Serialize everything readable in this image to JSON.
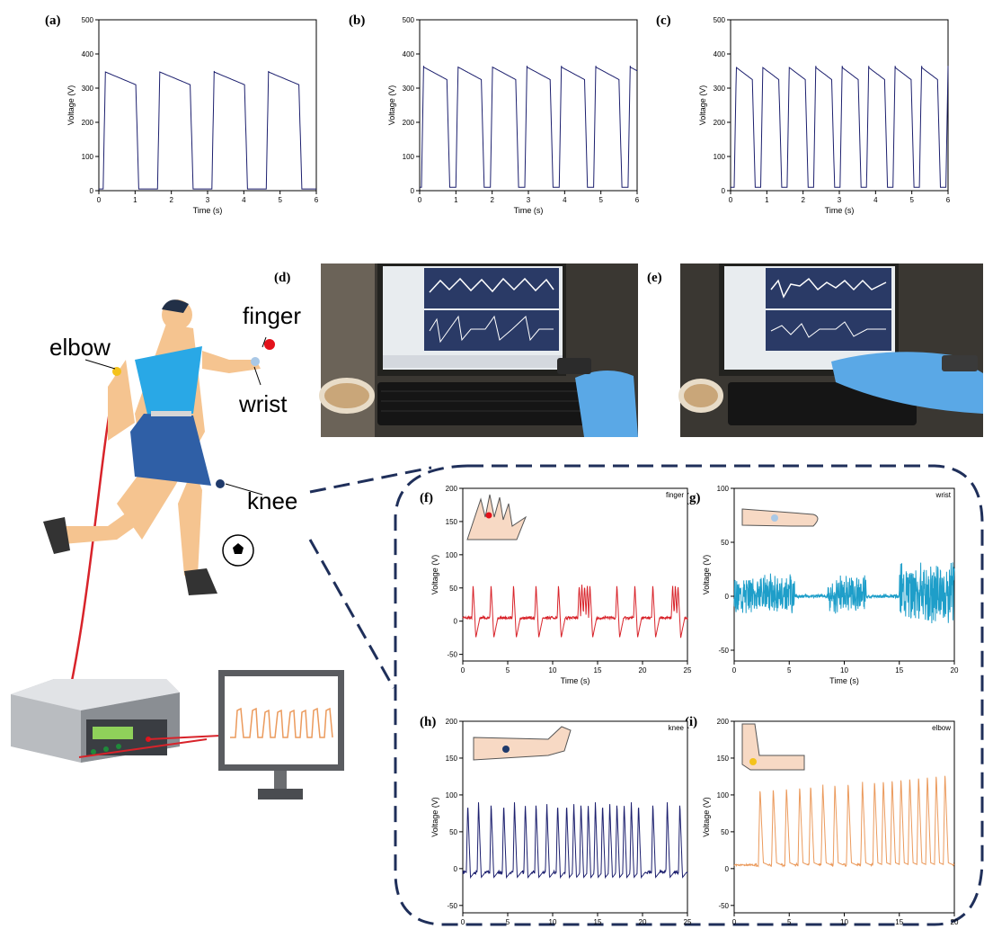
{
  "panel_letters": [
    "(a)",
    "(b)",
    "(c)",
    "(d)",
    "(e)",
    "(f)",
    "(g)",
    "(h)",
    "(i)"
  ],
  "body_labels": {
    "finger": "finger",
    "elbow": "elbow",
    "wrist": "wrist",
    "knee": "knee"
  },
  "colors": {
    "navy": "#1c1f6e",
    "red": "#d8232a",
    "cyan": "#1e9ec9",
    "orange": "#eb9a5c",
    "marker_finger": "#e3121b",
    "marker_elbow": "#f4c21b",
    "marker_wrist": "#a9c8e6",
    "marker_knee": "#1f3a6b"
  },
  "photo_icons": [
    "lab-computer-photo",
    "glove-hand-photo",
    "keyboard-photo"
  ],
  "chart_data": [
    {
      "id": "a",
      "type": "line",
      "xlabel": "Time (s)",
      "ylabel": "Voltage (V)",
      "xlim": [
        0,
        6
      ],
      "ylim": [
        0,
        500
      ],
      "xticks": [
        0,
        1,
        2,
        3,
        4,
        5,
        6
      ],
      "yticks": [
        0,
        100,
        200,
        300,
        400,
        500
      ],
      "series": [
        {
          "color": "#1c1f6e",
          "pulse": {
            "period": 1.5,
            "start": 0.12,
            "high": 350,
            "low": 5,
            "width": 0.9
          }
        }
      ]
    },
    {
      "id": "b",
      "type": "line",
      "xlabel": "Time (s)",
      "ylabel": "Voltage (V)",
      "xlim": [
        0,
        6
      ],
      "ylim": [
        0,
        500
      ],
      "xticks": [
        0,
        1,
        2,
        3,
        4,
        5,
        6
      ],
      "yticks": [
        0,
        100,
        200,
        300,
        400,
        500
      ],
      "series": [
        {
          "color": "#1c1f6e",
          "pulse": {
            "period": 0.95,
            "start": 0.05,
            "high": 365,
            "low": 10,
            "width": 0.7
          }
        }
      ]
    },
    {
      "id": "c",
      "type": "line",
      "xlabel": "Time (s)",
      "ylabel": "Voltage (V)",
      "xlim": [
        0,
        6
      ],
      "ylim": [
        0,
        500
      ],
      "xticks": [
        0,
        1,
        2,
        3,
        4,
        5,
        6
      ],
      "yticks": [
        0,
        100,
        200,
        300,
        400,
        500
      ],
      "series": [
        {
          "color": "#1c1f6e",
          "pulse": {
            "period": 0.73,
            "start": 0.1,
            "high": 365,
            "low": 10,
            "width": 0.5
          }
        }
      ]
    },
    {
      "id": "f",
      "type": "line",
      "legend": "finger",
      "xlabel": "Time (s)",
      "ylabel": "Voltage (V)",
      "xlim": [
        0,
        25
      ],
      "ylim": [
        -60,
        200
      ],
      "xticks": [
        0,
        5,
        10,
        15,
        20,
        25
      ],
      "yticks": [
        -50,
        0,
        50,
        100,
        150,
        200
      ],
      "series": [
        {
          "color": "#d8232a",
          "spikes": {
            "times": [
              1,
              3,
              5.5,
              8,
              10.5,
              12.8,
              13.1,
              13.4,
              13.7,
              14,
              17,
              19,
              21,
              23.2,
              23.5,
              23.8
            ],
            "peak": 55,
            "trough": -25,
            "base": 5
          }
        }
      ]
    },
    {
      "id": "g",
      "type": "line",
      "legend": "wrist",
      "xlabel": "Time (s)",
      "ylabel": "Voltage (V)",
      "xlim": [
        0,
        20
      ],
      "ylim": [
        -60,
        100
      ],
      "xticks": [
        0,
        5,
        10,
        15,
        20
      ],
      "yticks": [
        -50,
        0,
        50,
        100
      ],
      "series": [
        {
          "color": "#1e9ec9",
          "bursts": [
            [
              0,
              5.5,
              20
            ],
            [
              8.5,
              12,
              20
            ],
            [
              15,
              20,
              32
            ]
          ],
          "noise": 3
        }
      ]
    },
    {
      "id": "h",
      "type": "line",
      "legend": "knee",
      "xlabel": "Time (s)",
      "ylabel": "Voltage (V)",
      "xlim": [
        0,
        25
      ],
      "ylim": [
        -60,
        200
      ],
      "xticks": [
        0,
        5,
        10,
        15,
        20,
        25
      ],
      "yticks": [
        -50,
        0,
        50,
        100,
        150,
        200
      ],
      "series": [
        {
          "color": "#1c1f6e",
          "spikes": {
            "times": [
              0.4,
              1.6,
              3,
              4.4,
              5.6,
              6.8,
              8,
              9.2,
              10.4,
              11.4,
              12.2,
              13,
              13.8,
              14.6,
              15.4,
              16.2,
              17,
              17.8,
              18.6,
              19.4,
              21,
              22.6,
              24
            ],
            "peak": 90,
            "trough": -12,
            "base": -5
          }
        }
      ]
    },
    {
      "id": "i",
      "type": "line",
      "legend": "elbow",
      "xlabel": "Time (s)",
      "ylabel": "Voltage (V)",
      "xlim": [
        0,
        20
      ],
      "ylim": [
        -60,
        200
      ],
      "xticks": [
        0,
        5,
        10,
        15,
        20
      ],
      "yticks": [
        -50,
        0,
        50,
        100,
        150,
        200
      ],
      "series": [
        {
          "color": "#eb9a5c",
          "spikes": {
            "times": [
              2.2,
              3.4,
              4.6,
              5.8,
              6.8,
              7.9,
              9,
              10.2,
              11.5,
              12.6,
              13.4,
              14.2,
              15,
              15.8,
              16.6,
              17.4,
              18.2,
              19
            ],
            "peak": 110,
            "peak_end": 132,
            "trough": 8,
            "base": 5,
            "pre": 5
          }
        }
      ]
    }
  ]
}
